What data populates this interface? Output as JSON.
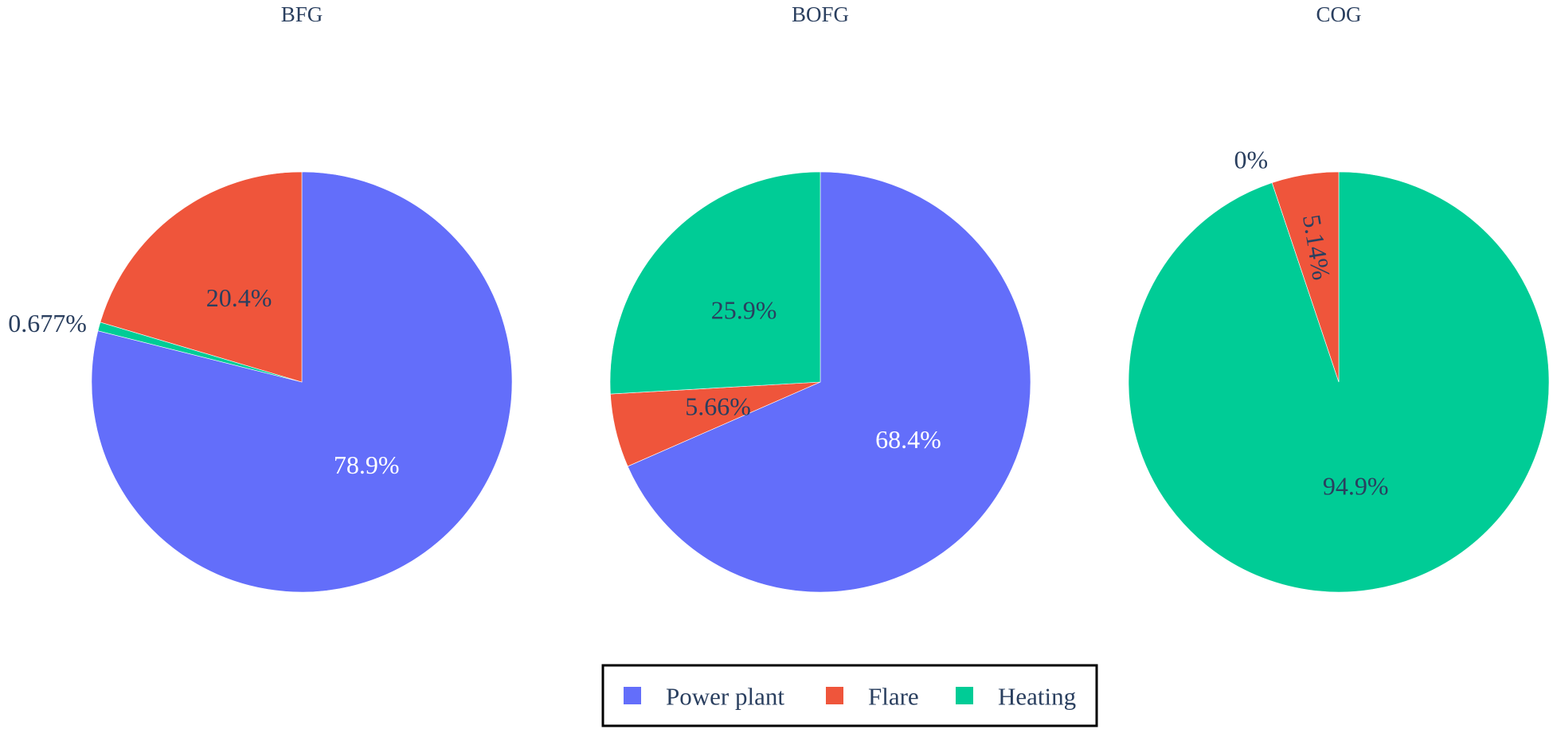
{
  "chart_data": {
    "type": "pie",
    "legend": {
      "position": "bottom-center",
      "items": [
        {
          "name": "Power plant",
          "color": "#636efa"
        },
        {
          "name": "Flare",
          "color": "#ef553b"
        },
        {
          "name": "Heating",
          "color": "#00cc96"
        }
      ]
    },
    "charts": [
      {
        "title": "BFG",
        "slices": [
          {
            "name": "Power plant",
            "value": 78.9,
            "label": "78.9%",
            "color": "#636efa"
          },
          {
            "name": "Heating",
            "value": 0.677,
            "label": "0.677%",
            "color": "#00cc96"
          },
          {
            "name": "Flare",
            "value": 20.4,
            "label": "20.4%",
            "color": "#ef553b"
          }
        ]
      },
      {
        "title": "BOFG",
        "slices": [
          {
            "name": "Power plant",
            "value": 68.4,
            "label": "68.4%",
            "color": "#636efa"
          },
          {
            "name": "Flare",
            "value": 5.66,
            "label": "5.66%",
            "color": "#ef553b"
          },
          {
            "name": "Heating",
            "value": 25.9,
            "label": "25.9%",
            "color": "#00cc96"
          }
        ]
      },
      {
        "title": "COG",
        "slices": [
          {
            "name": "Heating",
            "value": 94.9,
            "label": "94.9%",
            "color": "#00cc96"
          },
          {
            "name": "Power plant",
            "value": 0,
            "label": "0%",
            "color": "#636efa"
          },
          {
            "name": "Flare",
            "value": 5.14,
            "label": "5.14%",
            "color": "#ef553b"
          }
        ]
      }
    ]
  }
}
